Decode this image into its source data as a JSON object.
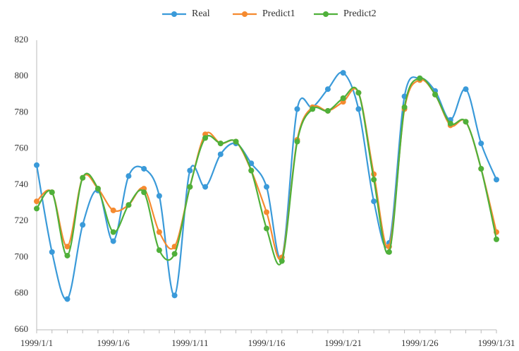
{
  "chart_data": {
    "type": "line",
    "categories": [
      "1999/1/1",
      null,
      null,
      null,
      null,
      "1999/1/6",
      null,
      null,
      null,
      null,
      "1999/1/11",
      null,
      null,
      null,
      null,
      "1999/1/16",
      null,
      null,
      null,
      null,
      "1999/1/21",
      null,
      null,
      null,
      null,
      "1999/1/26",
      null,
      null,
      null,
      null,
      "1999/1/31"
    ],
    "series": [
      {
        "name": "Real",
        "color": "#3a9ad9",
        "values": [
          751,
          703,
          677,
          718,
          737,
          709,
          745,
          749,
          734,
          679,
          748,
          739,
          757,
          763,
          752,
          739,
          700,
          782,
          783,
          793,
          802,
          782,
          731,
          708,
          789,
          799,
          792,
          776,
          793,
          763,
          743
        ]
      },
      {
        "name": "Predict1",
        "color": "#f58a2f",
        "values": [
          731,
          736,
          706,
          744,
          738,
          726,
          729,
          738,
          714,
          706,
          739,
          768,
          763,
          764,
          748,
          725,
          700,
          765,
          783,
          781,
          786,
          791,
          746,
          706,
          782,
          798,
          790,
          773,
          775,
          749,
          714
        ]
      },
      {
        "name": "Predict2",
        "color": "#4fb03a",
        "values": [
          727,
          736,
          701,
          744,
          738,
          714,
          729,
          736,
          704,
          702,
          739,
          766,
          763,
          764,
          748,
          716,
          698,
          764,
          782,
          781,
          788,
          791,
          743,
          703,
          783,
          799,
          790,
          774,
          775,
          749,
          710
        ]
      }
    ],
    "ylim": [
      660,
      820
    ],
    "yticks": [
      660,
      680,
      700,
      720,
      740,
      760,
      780,
      800,
      820
    ],
    "grid": false,
    "legend": "top"
  }
}
